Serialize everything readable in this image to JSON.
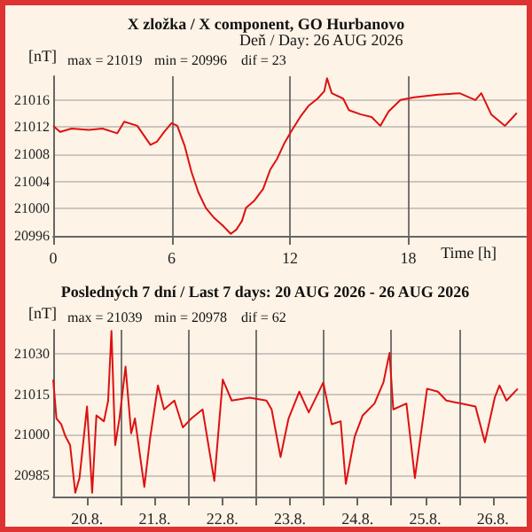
{
  "chart_data": [
    {
      "type": "line",
      "title": "X zložka / X component, GO Hurbanovo",
      "subtitle": "Deň / Day: 26 AUG 2026",
      "ylabel": "[nT]",
      "xlabel": "Time [h]",
      "annotations": [
        "max = 21019",
        "min = 20996",
        "dif = 23"
      ],
      "xlim": [
        0,
        24
      ],
      "xticks": [
        0,
        6,
        12,
        18
      ],
      "ylim": [
        20996,
        21019.5
      ],
      "yticks": [
        20996,
        21000,
        21004,
        21008,
        21012,
        21016
      ],
      "grid": true,
      "marker": "none",
      "line_style": "solid",
      "series": [
        {
          "color": "#dd1111",
          "x": [
            0,
            0.35,
            0.93,
            1.8,
            2.5,
            3.25,
            3.6,
            4.26,
            4.93,
            5.27,
            5.62,
            6.0,
            6.29,
            6.67,
            7.01,
            7.36,
            7.74,
            8.17,
            8.6,
            9.0,
            9.28,
            9.57,
            9.77,
            10.2,
            10.64,
            11.01,
            11.36,
            11.71,
            12.09,
            12.52,
            12.96,
            13.4,
            13.74,
            13.88,
            14.12,
            14.7,
            14.99,
            15.57,
            16.14,
            16.58,
            17.0,
            17.6,
            18.3,
            19.5,
            20.6,
            21.4,
            21.7,
            22.2,
            22.9,
            23.25,
            23.5
          ],
          "values": [
            21012.2,
            21011.3,
            21011.8,
            21011.6,
            21011.8,
            21011.1,
            21012.8,
            21012.2,
            21009.4,
            21009.9,
            21011.3,
            21012.6,
            21012.2,
            21009.2,
            21005.4,
            21002.4,
            21000.1,
            20998.6,
            20997.5,
            20996.3,
            20996.9,
            20998.2,
            21000.1,
            21001.2,
            21002.9,
            21005.8,
            21007.4,
            21009.6,
            21011.5,
            21013.5,
            21015.2,
            21016.2,
            21017.3,
            21019.2,
            21017,
            21016.2,
            21014.5,
            21013.9,
            21013.5,
            21012.2,
            21014.3,
            21016,
            21016.4,
            21016.8,
            21017,
            21016,
            21017,
            21013.9,
            21012.2,
            21013.3,
            21014.1
          ]
        }
      ]
    },
    {
      "type": "line",
      "title": "Posledných 7 dní / Last 7 days: 20 AUG 2026 - 26 AUG 2026",
      "ylabel": "[nT]",
      "annotations": [
        "max = 21039",
        "min = 20978",
        "dif = 62"
      ],
      "xlim": [
        "2026-08-20T00:00",
        "2026-08-27T00:00"
      ],
      "xticks": [
        {
          "value": "2026-08-20T12:00",
          "label": "20.8."
        },
        {
          "value": "2026-08-21T00:00",
          "label": null
        },
        {
          "value": "2026-08-21T12:00",
          "label": "21.8."
        },
        {
          "value": "2026-08-22T00:00",
          "label": null
        },
        {
          "value": "2026-08-22T12:00",
          "label": "22.8."
        },
        {
          "value": "2026-08-23T00:00",
          "label": null
        },
        {
          "value": "2026-08-23T12:00",
          "label": "23.8."
        },
        {
          "value": "2026-08-24T00:00",
          "label": null
        },
        {
          "value": "2026-08-24T12:00",
          "label": "24.8."
        },
        {
          "value": "2026-08-25T00:00",
          "label": null
        },
        {
          "value": "2026-08-25T12:00",
          "label": "25.8."
        },
        {
          "value": "2026-08-26T00:00",
          "label": null
        },
        {
          "value": "2026-08-26T12:00",
          "label": "26.8."
        }
      ],
      "ylim": [
        20977,
        21039
      ],
      "yticks": [
        20985,
        21000,
        21015,
        21030
      ],
      "grid": true,
      "marker": "none",
      "line_style": "solid",
      "series": [
        {
          "color": "#dd1111",
          "x": [
            "2026-08-20T00:00",
            "2026-08-20T01:10",
            "2026-08-20T02:50",
            "2026-08-20T04:20",
            "2026-08-20T06:00",
            "2026-08-20T07:50",
            "2026-08-20T09:20",
            "2026-08-20T12:00",
            "2026-08-20T13:50",
            "2026-08-20T15:20",
            "2026-08-20T18:00",
            "2026-08-20T19:30",
            "2026-08-20T20:40",
            "2026-08-20T22:00",
            "2026-08-20T23:30",
            "2026-08-21T01:40",
            "2026-08-21T03:40",
            "2026-08-21T05:00",
            "2026-08-21T08:20",
            "2026-08-21T10:20",
            "2026-08-21T13:10",
            "2026-08-21T15:20",
            "2026-08-21T19:00",
            "2026-08-21T22:00",
            "2026-08-22T01:00",
            "2026-08-22T05:00",
            "2026-08-22T09:10",
            "2026-08-22T12:10",
            "2026-08-22T15:20",
            "2026-08-22T21:40",
            "2026-08-23T03:40",
            "2026-08-23T05:30",
            "2026-08-23T08:40",
            "2026-08-23T11:30",
            "2026-08-23T15:20",
            "2026-08-23T18:40",
            "2026-08-23T23:50",
            "2026-08-24T02:50",
            "2026-08-24T06:00",
            "2026-08-24T07:50",
            "2026-08-24T11:00",
            "2026-08-24T13:50",
            "2026-08-24T18:00",
            "2026-08-24T21:10",
            "2026-08-24T23:20",
            "2026-08-25T00:40",
            "2026-08-25T05:20",
            "2026-08-25T08:20",
            "2026-08-25T12:40",
            "2026-08-25T16:30",
            "2026-08-25T19:30",
            "2026-08-26T00:40",
            "2026-08-26T05:50",
            "2026-08-26T09:10",
            "2026-08-26T12:40",
            "2026-08-26T14:20",
            "2026-08-26T16:50",
            "2026-08-26T20:50"
          ],
          "values": [
            21020.5,
            21006,
            21003.9,
            20999.4,
            20996.1,
            20978.4,
            20983.9,
            21010.5,
            20978.4,
            21007.2,
            21005,
            21012.7,
            21038.6,
            20996.1,
            21006,
            21025.3,
            21000.5,
            21006,
            20980.6,
            20998.3,
            21018.3,
            21009.4,
            21012.7,
            21002.7,
            21006,
            21009.4,
            20982.8,
            21020.5,
            21012.7,
            21013.8,
            21012.7,
            21009.4,
            20991.7,
            21006,
            21016,
            21008.3,
            21019.4,
            21003.9,
            21005,
            20981.7,
            20999.4,
            21007.2,
            21011.6,
            21019.4,
            21030.4,
            21009.4,
            21011.6,
            20983.9,
            21017.1,
            21016,
            21012.7,
            21011.6,
            21010.5,
            20997.2,
            21013.8,
            21018.3,
            21012.7,
            21017.1
          ]
        }
      ]
    }
  ]
}
